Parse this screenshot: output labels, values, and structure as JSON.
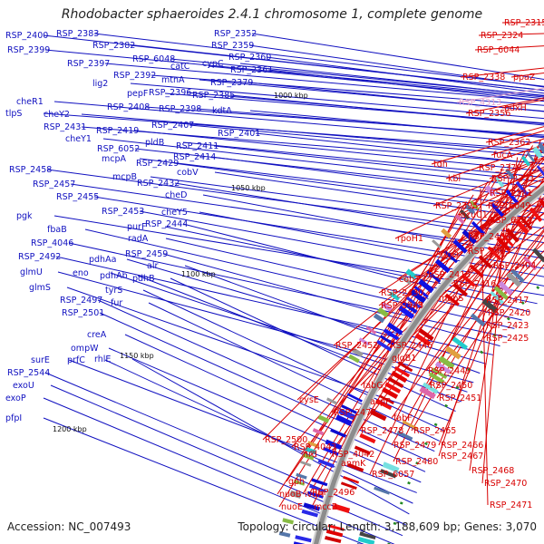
{
  "title": "Rhodobacter sphaeroides 2.4.1 chromosome 1, complete genome",
  "accession": "Accession: NC_007493",
  "topology": "Topology: circular; Length: 3,188,609 bp; Genes: 3,070",
  "colors": {
    "left_labels": "#1010c0",
    "right_labels": "#d80000",
    "faded_label": "#e8a6cf",
    "backbone": "#9a9a9a",
    "plus_strand": "#1010e0",
    "minus_strand": "#e00000"
  },
  "scale_labels": [
    "1000 kbp",
    "1050 kbp",
    "1100 kbp",
    "1150 kbp",
    "1200 kbp"
  ],
  "left_labels": [
    "RSP_2400",
    "RSP_2383",
    "RSP_2382",
    "RSP_6048",
    "RSP_2399",
    "RSP_2397",
    "RSP_2392",
    "catC",
    "cypC",
    "RSP_2352",
    "RSP_2359",
    "RSP_2360",
    "RSP_2361",
    "mtnA",
    "RSP_2379",
    "lig2",
    "pepF",
    "RSP_2396",
    "RSP_2385",
    "RSP_2408",
    "RSP_2398",
    "kdtA",
    "cheR1",
    "tlpS",
    "cheY2",
    "RSP_2407",
    "RSP_2431",
    "RSP_2401",
    "RSP_2419",
    "pldB",
    "RSP_2411",
    "cheY1",
    "RSP_6052",
    "RSP_2414",
    "mcpA",
    "RSP_2429",
    "cobV",
    "mcpB",
    "RSP_2458",
    "RSP_2432",
    "RSP_2457",
    "cheD",
    "RSP_2455",
    "cheY5",
    "RSP_2453",
    "pgk",
    "purF",
    "RSP_2444",
    "radA",
    "fbaB",
    "RSP_4046",
    "RSP_2459",
    "RSP_2492",
    "pdhAa",
    "alr",
    "glmU",
    "eno",
    "pdhAb",
    "pdhB",
    "glmS",
    "tyrS",
    "fur",
    "RSP_2497",
    "RSP_2501",
    "creA",
    "ompW",
    "surE",
    "prfC",
    "rhlE",
    "RSP_2544",
    "exoU",
    "exoP",
    "pfpI"
  ],
  "right_labels": [
    "RSP_2315",
    "RSP_2324",
    "RSP_6044",
    "RSP_2338",
    "ppaZ",
    "RSP_4313",
    "pdxH",
    "RSP_2356",
    "RSP_2362",
    "fucA",
    "tdh",
    "RSP_2370",
    "kbl",
    "RSP_2373",
    "RSP_2381",
    "RSP_6049",
    "RSP_2395",
    "acuC1",
    "RSP_6224",
    "rpoH1",
    "RSP_2402",
    "RSP_2403",
    "rluD",
    "RSP_2404",
    "RSP_2415",
    "cobT",
    "RSP_2416",
    "RSP_2430",
    "mgpS",
    "RSP_2417",
    "RSP_2445",
    "RSP_2420",
    "RSP_2423",
    "RSP_2425",
    "RSP_2452",
    "RSP_2446",
    "glgB1",
    "RSP_2449",
    "fabG",
    "RSP_2450",
    "acpP",
    "RSP_2451",
    "cysE",
    "RSP_2477",
    "fabF",
    "RSP_2478",
    "RSP_2465",
    "RSP_2500",
    "RSP_4043",
    "RSP_2479",
    "RSP_2466",
    "nrd",
    "RSP_4042",
    "RSP_2480",
    "RSP_2467",
    "anmK",
    "RSP_6057",
    "RSP_2468",
    "RSP_2470",
    "RSP_2496",
    "gph",
    "ivdH",
    "RSP_2471",
    "nuoB",
    "nuoE",
    "mccB"
  ]
}
